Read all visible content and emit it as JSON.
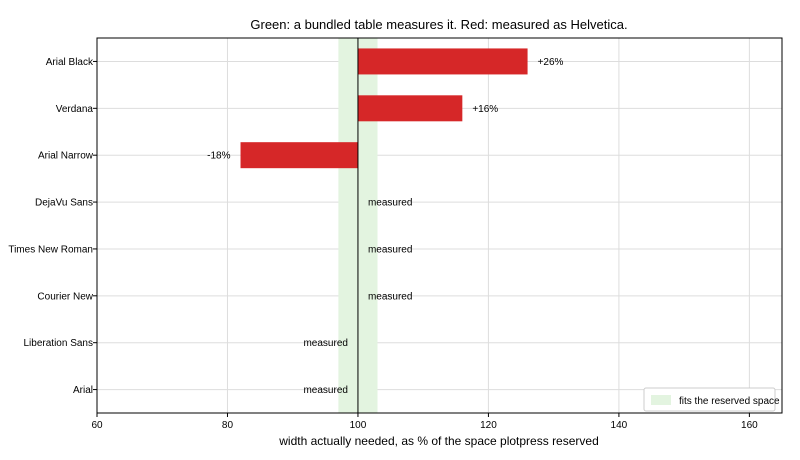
{
  "chart_data": {
    "type": "bar",
    "orientation": "horizontal",
    "title": "Green: a bundled table measures it. Red: measured as Helvetica.",
    "xlabel": "width actually needed, as % of the space plotpress reserved",
    "ylabel": "",
    "xlim": [
      60,
      165
    ],
    "xticks": [
      60,
      80,
      100,
      120,
      140,
      160
    ],
    "reference_line": 100,
    "grid": true,
    "band": {
      "from": 97,
      "to": 103,
      "color": "#e3f4e0",
      "label": "fits the reserved space"
    },
    "legend": {
      "position": "bottom-right"
    },
    "colors": {
      "red": "#d62728",
      "green": "#e3f4e0",
      "reference": "#000000",
      "grid": "#dddddd"
    },
    "categories": [
      "Arial Black",
      "Verdana",
      "Arial Narrow",
      "DejaVu Sans",
      "Times New Roman",
      "Courier New",
      "Liberation Sans",
      "Arial"
    ],
    "values": [
      126,
      116,
      82,
      100,
      100,
      100,
      100,
      100
    ],
    "bar_colors": [
      "red",
      "red",
      "red",
      "green",
      "green",
      "green",
      "green",
      "green"
    ],
    "data_labels": [
      "+26%",
      "+16%",
      "-18%",
      "measured",
      "measured",
      "measured",
      "measured",
      "measured"
    ],
    "label_side": [
      "right",
      "right",
      "left",
      "right",
      "right",
      "right",
      "left",
      "left"
    ]
  }
}
